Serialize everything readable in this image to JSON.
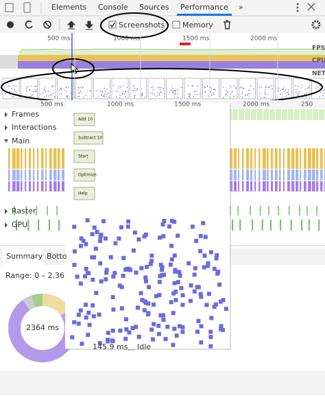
{
  "tabs": [
    "Elements",
    "Console",
    "Sources",
    "Performance",
    "»"
  ],
  "toolbar": {
    "screenshots": "Screenshots",
    "memory": "Memory"
  },
  "overview": {
    "ticks": [
      "500 ms",
      "1000 ms",
      "1500 ms",
      "2000 ms"
    ],
    "lanes": [
      "FPS",
      "CPU",
      "NET"
    ]
  },
  "timeline": {
    "ticks": [
      "500 ms",
      "1000 ms",
      "1500 ms",
      "2000 ms",
      "250"
    ],
    "tracks": [
      "Frames",
      "Interactions",
      "Main",
      "Raster",
      "GPU"
    ]
  },
  "popup": {
    "buttons": [
      "Add 10",
      "Subtract 10",
      "Start",
      "Optimize",
      "Help"
    ]
  },
  "bottom": {
    "tabs": [
      "Summary",
      "Botto"
    ],
    "range": "Range: 0 – 2.36",
    "total": "2364 ms",
    "idle_time": "145.9 ms",
    "idle": "Idle"
  }
}
